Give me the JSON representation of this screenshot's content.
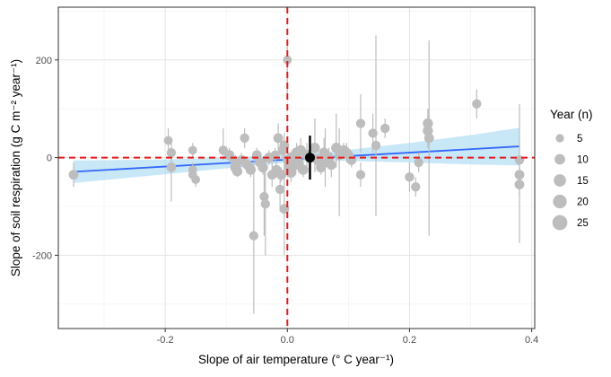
{
  "chart_data": {
    "type": "scatter",
    "xlabel": "Slope of air temperature (° C year⁻¹)",
    "ylabel": "Slope of soil respiration (g C m⁻² year⁻¹)",
    "xlim": [
      -0.375,
      0.405
    ],
    "ylim": [
      -350,
      308
    ],
    "x_ticks": [
      -0.2,
      0.0,
      0.2,
      0.4
    ],
    "x_tick_labels": [
      "-0.2",
      "0.0",
      "0.2",
      "0.4"
    ],
    "y_ticks": [
      -200,
      0,
      200
    ],
    "y_tick_labels": [
      "-200",
      "0",
      "200"
    ],
    "grid": true,
    "legend": {
      "title": "Year (n)",
      "placement": "right",
      "entries": [
        {
          "label": "5",
          "n": 5
        },
        {
          "label": "10",
          "n": 10
        },
        {
          "label": "15",
          "n": 15
        },
        {
          "label": "20",
          "n": 20
        },
        {
          "label": "25",
          "n": 25
        }
      ]
    },
    "reference_lines": {
      "x": 0,
      "y": 0,
      "color": "#e41a1c",
      "style": "dashed"
    },
    "trend_line": {
      "x": [
        -0.35,
        0.38
      ],
      "y": [
        -29,
        23
      ],
      "color": "#3366ff"
    },
    "confidence_band": {
      "x": [
        -0.35,
        -0.2,
        -0.1,
        0.0,
        0.05,
        0.1,
        0.2,
        0.3,
        0.38
      ],
      "lower": [
        -52,
        -34,
        -22,
        -10,
        -6,
        -7,
        -10,
        -14,
        -16
      ],
      "upper": [
        -6,
        -4,
        0,
        6,
        10,
        16,
        30,
        46,
        61
      ],
      "color": "#9ad3f0"
    },
    "summary_point": {
      "x": 0.037,
      "y": 0,
      "lower": -45,
      "upper": 45
    },
    "points": [
      {
        "x": -0.35,
        "y": -35,
        "lo": -60,
        "hi": -10,
        "n": 8
      },
      {
        "x": -0.195,
        "y": 35,
        "lo": 10,
        "hi": 60,
        "n": 6
      },
      {
        "x": -0.19,
        "y": 10,
        "lo": -10,
        "hi": 30,
        "n": 7
      },
      {
        "x": -0.19,
        "y": -20,
        "lo": -90,
        "hi": 10,
        "n": 8
      },
      {
        "x": -0.155,
        "y": 15,
        "lo": 0,
        "hi": 30,
        "n": 6
      },
      {
        "x": -0.155,
        "y": -25,
        "lo": -40,
        "hi": -10,
        "n": 6
      },
      {
        "x": -0.155,
        "y": -35,
        "lo": -50,
        "hi": -20,
        "n": 6
      },
      {
        "x": -0.15,
        "y": -45,
        "lo": -60,
        "hi": -30,
        "n": 6
      },
      {
        "x": -0.105,
        "y": 15,
        "lo": -5,
        "hi": 60,
        "n": 7
      },
      {
        "x": -0.095,
        "y": 5,
        "lo": -10,
        "hi": 20,
        "n": 9
      },
      {
        "x": -0.085,
        "y": -8,
        "lo": -20,
        "hi": 5,
        "n": 9
      },
      {
        "x": -0.085,
        "y": -20,
        "lo": -35,
        "hi": -5,
        "n": 10
      },
      {
        "x": -0.082,
        "y": -28,
        "lo": -40,
        "hi": -15,
        "n": 9
      },
      {
        "x": -0.075,
        "y": -5,
        "lo": -20,
        "hi": 10,
        "n": 8
      },
      {
        "x": -0.07,
        "y": 40,
        "lo": 20,
        "hi": 60,
        "n": 7
      },
      {
        "x": -0.065,
        "y": -15,
        "lo": -30,
        "hi": 0,
        "n": 9
      },
      {
        "x": -0.06,
        "y": -25,
        "lo": -40,
        "hi": -10,
        "n": 9
      },
      {
        "x": -0.055,
        "y": -160,
        "lo": -320,
        "hi": 0,
        "n": 7
      },
      {
        "x": -0.05,
        "y": 5,
        "lo": -10,
        "hi": 20,
        "n": 8
      },
      {
        "x": -0.045,
        "y": -10,
        "lo": -25,
        "hi": 5,
        "n": 8
      },
      {
        "x": -0.04,
        "y": -20,
        "lo": -35,
        "hi": -5,
        "n": 9
      },
      {
        "x": -0.038,
        "y": -80,
        "lo": -160,
        "hi": 0,
        "n": 7
      },
      {
        "x": -0.036,
        "y": -95,
        "lo": -200,
        "hi": 0,
        "n": 7
      },
      {
        "x": -0.03,
        "y": 0,
        "lo": -15,
        "hi": 15,
        "n": 9
      },
      {
        "x": -0.025,
        "y": -35,
        "lo": -60,
        "hi": -10,
        "n": 8
      },
      {
        "x": -0.02,
        "y": 5,
        "lo": -10,
        "hi": 20,
        "n": 7
      },
      {
        "x": -0.018,
        "y": -25,
        "lo": -40,
        "hi": -10,
        "n": 8
      },
      {
        "x": -0.015,
        "y": 40,
        "lo": 10,
        "hi": 70,
        "n": 8
      },
      {
        "x": -0.012,
        "y": -65,
        "lo": -110,
        "hi": -20,
        "n": 7
      },
      {
        "x": -0.01,
        "y": -35,
        "lo": -50,
        "hi": -20,
        "n": 9
      },
      {
        "x": -0.008,
        "y": 15,
        "lo": -5,
        "hi": 35,
        "n": 8
      },
      {
        "x": -0.005,
        "y": -105,
        "lo": -200,
        "hi": -10,
        "n": 8
      },
      {
        "x": -0.005,
        "y": 25,
        "lo": 0,
        "hi": 50,
        "n": 8
      },
      {
        "x": 0.0,
        "y": 200,
        "lo": 120,
        "hi": 240,
        "n": 6
      },
      {
        "x": 0.002,
        "y": -5,
        "lo": -20,
        "hi": 10,
        "n": 12
      },
      {
        "x": 0.004,
        "y": -20,
        "lo": -35,
        "hi": -5,
        "n": 13
      },
      {
        "x": 0.006,
        "y": -30,
        "lo": -50,
        "hi": -10,
        "n": 11
      },
      {
        "x": 0.008,
        "y": 0,
        "lo": -15,
        "hi": 15,
        "n": 12
      },
      {
        "x": 0.012,
        "y": -15,
        "lo": -30,
        "hi": 0,
        "n": 11
      },
      {
        "x": 0.015,
        "y": 10,
        "lo": -10,
        "hi": 30,
        "n": 10
      },
      {
        "x": 0.018,
        "y": -10,
        "lo": -30,
        "hi": 10,
        "n": 10
      },
      {
        "x": 0.022,
        "y": 15,
        "lo": -10,
        "hi": 40,
        "n": 9
      },
      {
        "x": 0.026,
        "y": -25,
        "lo": -40,
        "hi": -10,
        "n": 9
      },
      {
        "x": 0.032,
        "y": 5,
        "lo": -20,
        "hi": 30,
        "n": 10
      },
      {
        "x": 0.045,
        "y": 20,
        "lo": -30,
        "hi": 80,
        "n": 9
      },
      {
        "x": 0.05,
        "y": -5,
        "lo": -20,
        "hi": 10,
        "n": 10
      },
      {
        "x": 0.055,
        "y": -20,
        "lo": -35,
        "hi": -5,
        "n": 9
      },
      {
        "x": 0.06,
        "y": 10,
        "lo": -20,
        "hi": 40,
        "n": 9
      },
      {
        "x": 0.062,
        "y": -10,
        "lo": -60,
        "hi": 60,
        "n": 8
      },
      {
        "x": 0.068,
        "y": 0,
        "lo": -20,
        "hi": 20,
        "n": 9
      },
      {
        "x": 0.072,
        "y": -15,
        "lo": -40,
        "hi": 10,
        "n": 8
      },
      {
        "x": 0.08,
        "y": 20,
        "lo": -20,
        "hi": 90,
        "n": 9
      },
      {
        "x": 0.085,
        "y": 5,
        "lo": -120,
        "hi": 60,
        "n": 8
      },
      {
        "x": 0.092,
        "y": 15,
        "lo": 0,
        "hi": 30,
        "n": 9
      },
      {
        "x": 0.097,
        "y": 10,
        "lo": -10,
        "hi": 30,
        "n": 8
      },
      {
        "x": 0.1,
        "y": 5,
        "lo": -10,
        "hi": 20,
        "n": 8
      },
      {
        "x": 0.105,
        "y": -5,
        "lo": -20,
        "hi": 10,
        "n": 8
      },
      {
        "x": 0.12,
        "y": 70,
        "lo": 10,
        "hi": 130,
        "n": 7
      },
      {
        "x": 0.12,
        "y": -35,
        "lo": -60,
        "hi": -10,
        "n": 7
      },
      {
        "x": 0.14,
        "y": 50,
        "lo": 10,
        "hi": 90,
        "n": 7
      },
      {
        "x": 0.145,
        "y": 25,
        "lo": -120,
        "hi": 250,
        "n": 7
      },
      {
        "x": 0.16,
        "y": 60,
        "lo": 40,
        "hi": 80,
        "n": 7
      },
      {
        "x": 0.2,
        "y": -40,
        "lo": -70,
        "hi": -10,
        "n": 7
      },
      {
        "x": 0.21,
        "y": -60,
        "lo": -80,
        "hi": -40,
        "n": 7
      },
      {
        "x": 0.215,
        "y": -10,
        "lo": -30,
        "hi": 10,
        "n": 7
      },
      {
        "x": 0.23,
        "y": 70,
        "lo": 40,
        "hi": 100,
        "n": 9
      },
      {
        "x": 0.23,
        "y": 55,
        "lo": 20,
        "hi": 90,
        "n": 9
      },
      {
        "x": 0.232,
        "y": 40,
        "lo": -160,
        "hi": 240,
        "n": 8
      },
      {
        "x": 0.31,
        "y": 110,
        "lo": 80,
        "hi": 140,
        "n": 7
      },
      {
        "x": 0.38,
        "y": -35,
        "lo": -60,
        "hi": -10,
        "n": 8
      },
      {
        "x": 0.38,
        "y": -55,
        "lo": -80,
        "hi": -30,
        "n": 8
      },
      {
        "x": 0.38,
        "y": -5,
        "lo": -175,
        "hi": 110,
        "n": 7
      }
    ]
  }
}
